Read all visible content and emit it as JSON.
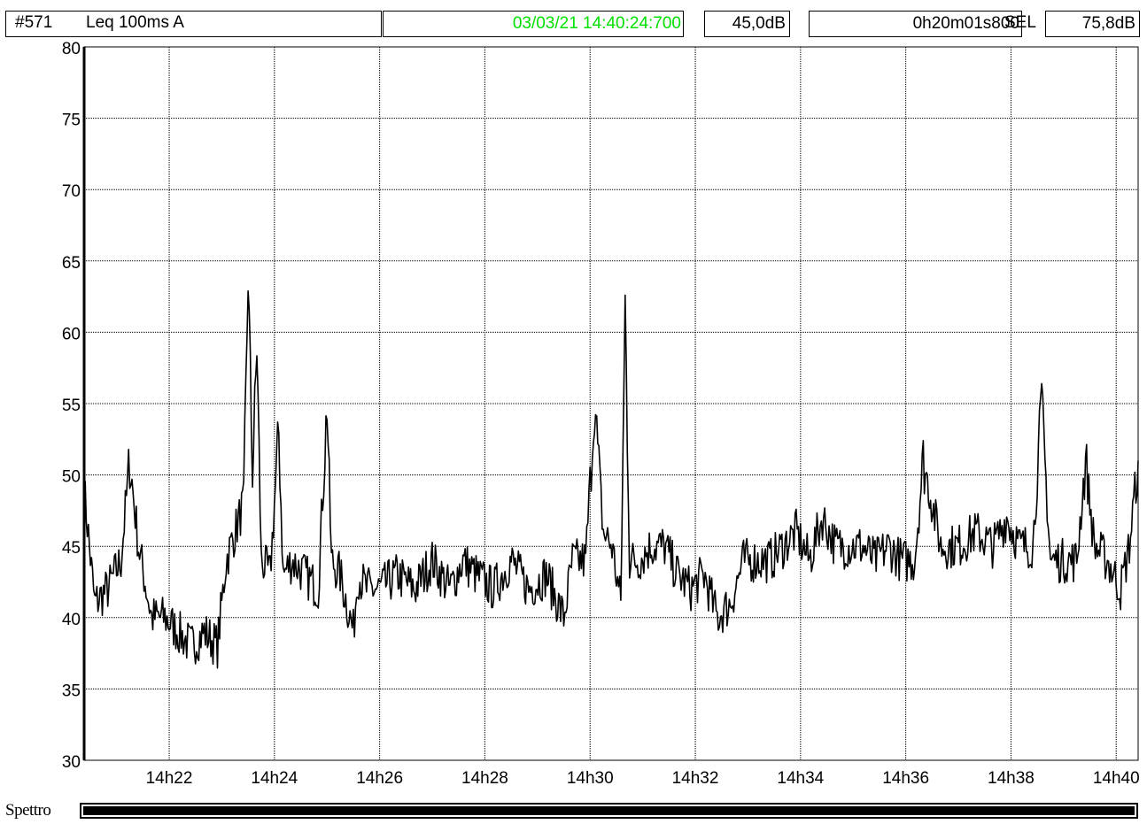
{
  "header": {
    "record_id": "#571",
    "measure": "Leq 100ms  A",
    "timestamp": "03/03/21 14:40:24:700",
    "level": "45,0dB",
    "duration": "0h20m01s800",
    "sel_label": "SEL",
    "sel_value": "75,8dB"
  },
  "colors": {
    "timestamp": "#00e000",
    "trace": "#000000",
    "grid": "#000000"
  },
  "spectrum": {
    "label": "Spettro"
  },
  "chart_data": {
    "type": "line",
    "title": "",
    "xlabel": "",
    "ylabel": "",
    "ylim": [
      30,
      80
    ],
    "yticks": [
      30,
      35,
      40,
      45,
      50,
      55,
      60,
      65,
      70,
      75,
      80
    ],
    "xlim": [
      "14:20:23",
      "14:40:25"
    ],
    "xticks": [
      "14:22",
      "14:24",
      "14:26",
      "14:28",
      "14:30",
      "14:32",
      "14:34",
      "14:36",
      "14:38",
      "14:40"
    ],
    "xtick_labels": [
      "14h22",
      "14h24",
      "14h26",
      "14h28",
      "14h30",
      "14h32",
      "14h34",
      "14h36",
      "14h38",
      "14h40"
    ],
    "grid": true,
    "series": [
      {
        "x": [
          "14:20:23",
          "14:20:35",
          "14:20:50",
          "14:21:05",
          "14:21:15",
          "14:21:25",
          "14:21:40",
          "14:21:55",
          "14:22:10",
          "14:22:25",
          "14:22:40",
          "14:22:55",
          "14:23:05",
          "14:23:15",
          "14:23:25",
          "14:23:30",
          "14:23:35",
          "14:23:40",
          "14:23:45",
          "14:23:55",
          "14:24:05",
          "14:24:10",
          "14:24:20",
          "14:24:35",
          "14:24:50",
          "14:25:00",
          "14:25:05",
          "14:25:15",
          "14:25:30",
          "14:25:35",
          "14:25:45",
          "14:26:00",
          "14:26:20",
          "14:26:40",
          "14:27:00",
          "14:27:20",
          "14:27:35",
          "14:27:50",
          "14:28:10",
          "14:28:30",
          "14:28:50",
          "14:29:10",
          "14:29:30",
          "14:29:40",
          "14:29:55",
          "14:30:05",
          "14:30:15",
          "14:30:25",
          "14:30:35",
          "14:30:40",
          "14:30:45",
          "14:30:55",
          "14:31:10",
          "14:31:25",
          "14:31:40",
          "14:31:55",
          "14:32:10",
          "14:32:25",
          "14:32:40",
          "14:32:55",
          "14:33:10",
          "14:33:25",
          "14:33:40",
          "14:33:55",
          "14:34:10",
          "14:34:25",
          "14:34:40",
          "14:34:55",
          "14:35:10",
          "14:35:25",
          "14:35:40",
          "14:35:55",
          "14:36:10",
          "14:36:20",
          "14:36:40",
          "14:37:00",
          "14:37:20",
          "14:37:40",
          "14:37:55",
          "14:38:10",
          "14:38:25",
          "14:38:35",
          "14:38:45",
          "14:39:00",
          "14:39:15",
          "14:39:25",
          "14:39:35",
          "14:39:50",
          "14:40:05",
          "14:40:15",
          "14:40:25"
        ],
        "values": [
          49,
          41,
          42,
          44,
          51,
          45,
          40,
          40,
          39,
          38,
          39,
          38,
          44,
          46,
          48,
          64,
          50,
          59,
          44,
          43,
          53,
          43,
          44,
          43,
          42,
          55,
          44,
          43,
          39,
          43,
          42,
          42,
          43,
          42,
          44,
          42,
          44,
          43,
          42,
          44,
          42,
          43,
          40,
          44,
          44,
          55,
          46,
          45,
          41,
          62,
          44,
          44,
          45,
          45,
          43,
          42,
          43,
          40,
          41,
          44,
          44,
          44,
          45,
          46,
          44,
          47,
          45,
          45,
          45,
          44,
          45,
          44,
          44,
          51,
          45,
          45,
          46,
          45,
          47,
          45,
          45,
          55,
          44,
          44,
          44,
          51,
          45,
          44,
          42,
          45,
          51
        ]
      }
    ]
  }
}
